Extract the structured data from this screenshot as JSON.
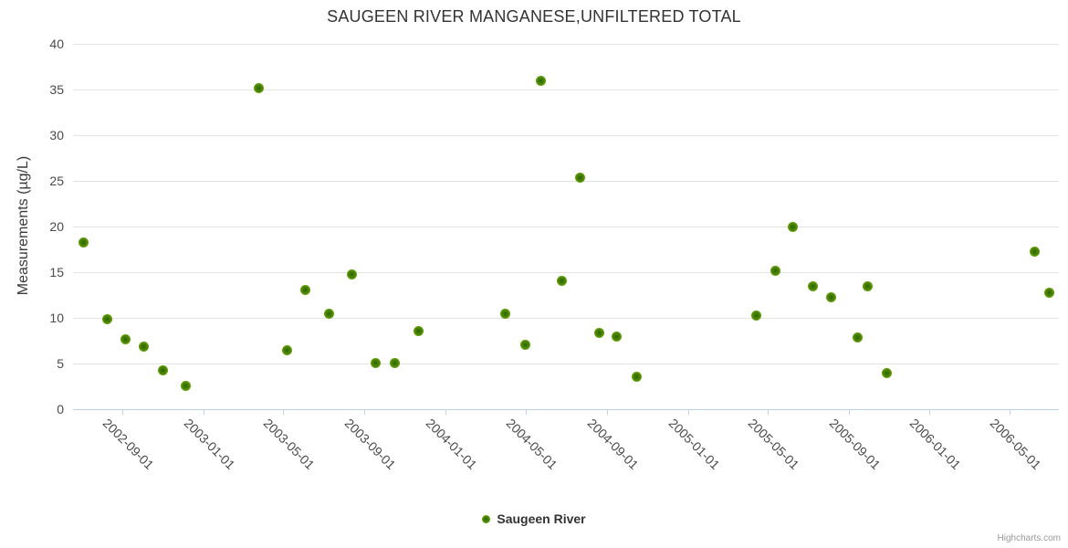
{
  "chart_data": {
    "type": "scatter",
    "title": "SAUGEEN RIVER MANGANESE,UNFILTERED TOTAL",
    "xlabel": "",
    "ylabel": "Measurements (µg/L)",
    "ylim": [
      0,
      40
    ],
    "y_ticks": [
      0,
      5,
      10,
      15,
      20,
      25,
      30,
      35,
      40
    ],
    "x_range": [
      "2002-06-18",
      "2006-07-15"
    ],
    "x_ticks": [
      "2002-09-01",
      "2003-01-01",
      "2003-05-01",
      "2003-09-01",
      "2004-01-01",
      "2004-05-01",
      "2004-09-01",
      "2005-01-01",
      "2005-05-01",
      "2005-09-01",
      "2006-01-01",
      "2006-05-01"
    ],
    "grid": "horizontal-only",
    "legend_position": "bottom-center",
    "series": [
      {
        "name": "Saugeen River",
        "color": "#6cac0e",
        "points": [
          {
            "x": "2002-07-04",
            "y": 18.3
          },
          {
            "x": "2002-08-09",
            "y": 9.9
          },
          {
            "x": "2002-09-05",
            "y": 7.7
          },
          {
            "x": "2002-10-03",
            "y": 6.9
          },
          {
            "x": "2002-11-01",
            "y": 4.3
          },
          {
            "x": "2002-12-05",
            "y": 2.6
          },
          {
            "x": "2003-03-26",
            "y": 35.2
          },
          {
            "x": "2003-05-07",
            "y": 6.5
          },
          {
            "x": "2003-06-04",
            "y": 13.1
          },
          {
            "x": "2003-07-09",
            "y": 10.5
          },
          {
            "x": "2003-08-13",
            "y": 14.8
          },
          {
            "x": "2003-09-18",
            "y": 5.1
          },
          {
            "x": "2003-10-16",
            "y": 5.1
          },
          {
            "x": "2003-11-21",
            "y": 8.6
          },
          {
            "x": "2004-04-01",
            "y": 10.5
          },
          {
            "x": "2004-04-30",
            "y": 7.1
          },
          {
            "x": "2004-05-24",
            "y": 36.0
          },
          {
            "x": "2004-06-25",
            "y": 14.1
          },
          {
            "x": "2004-07-23",
            "y": 25.4
          },
          {
            "x": "2004-08-20",
            "y": 8.4
          },
          {
            "x": "2004-09-16",
            "y": 8.0
          },
          {
            "x": "2004-10-16",
            "y": 3.6
          },
          {
            "x": "2005-04-14",
            "y": 10.3
          },
          {
            "x": "2005-05-13",
            "y": 15.2
          },
          {
            "x": "2005-06-09",
            "y": 20.0
          },
          {
            "x": "2005-07-09",
            "y": 13.5
          },
          {
            "x": "2005-08-05",
            "y": 12.3
          },
          {
            "x": "2005-09-14",
            "y": 7.9
          },
          {
            "x": "2005-09-29",
            "y": 13.5
          },
          {
            "x": "2005-10-28",
            "y": 4.0
          },
          {
            "x": "2006-06-09",
            "y": 17.3
          },
          {
            "x": "2006-07-01",
            "y": 12.8
          }
        ]
      }
    ]
  },
  "legend": {
    "label": "Saugeen River"
  },
  "credit": {
    "label": "Highcharts.com"
  }
}
